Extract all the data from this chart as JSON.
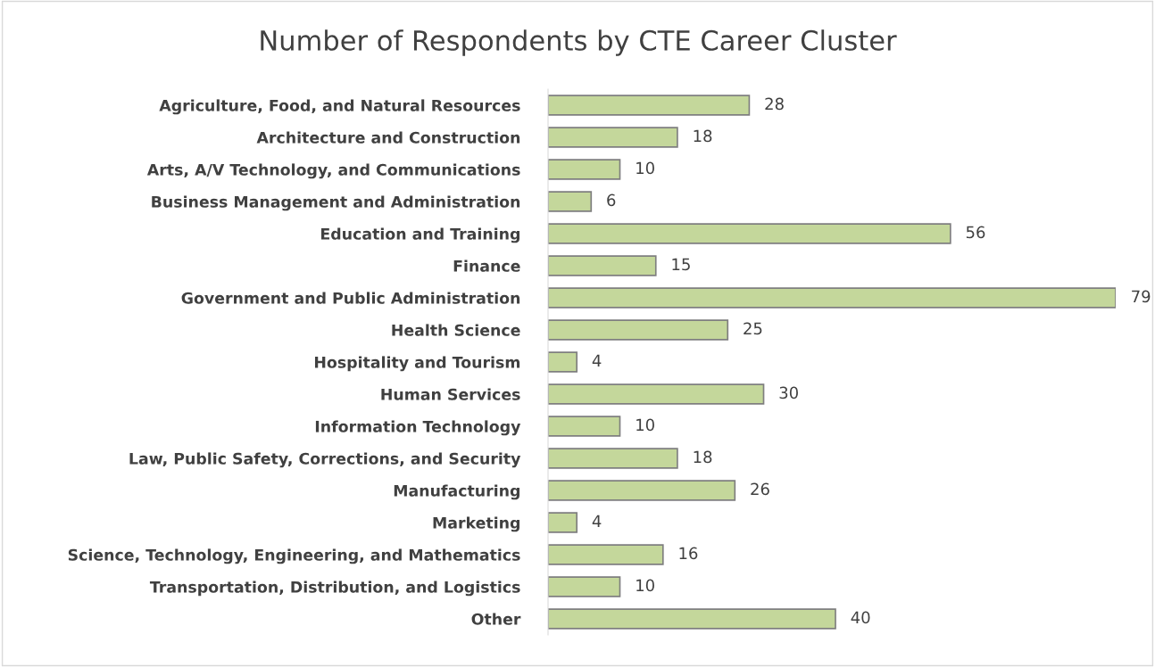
{
  "chart_data": {
    "type": "bar",
    "orientation": "horizontal",
    "title": "Number of Respondents by CTE Career Cluster",
    "categories": [
      "Agriculture, Food, and Natural Resources",
      "Architecture and Construction",
      "Arts, A/V Technology, and Communications",
      "Business Management and Administration",
      "Education and Training",
      "Finance",
      "Government and Public Administration",
      "Health Science",
      "Hospitality and Tourism",
      "Human Services",
      "Information Technology",
      "Law, Public Safety, Corrections, and Security",
      "Manufacturing",
      "Marketing",
      "Science, Technology, Engineering, and Mathematics",
      "Transportation, Distribution, and Logistics",
      "Other"
    ],
    "values": [
      28,
      18,
      10,
      6,
      56,
      15,
      79,
      25,
      4,
      30,
      10,
      18,
      26,
      4,
      16,
      10,
      40
    ],
    "color": "#c4d79b",
    "data_labels": true,
    "grid": false
  }
}
